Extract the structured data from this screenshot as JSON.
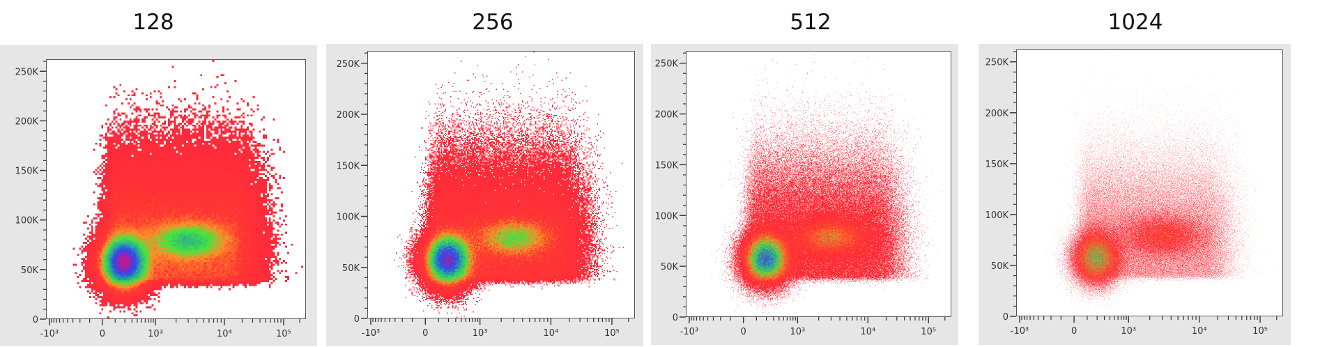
{
  "chart_data": [
    {
      "type": "heatmap",
      "title": "128",
      "bins": 128,
      "x_scale": "biexponential",
      "y_scale": "linear",
      "xlim": [
        -1200,
        262144
      ],
      "ylim": [
        0,
        262144
      ],
      "grid": false,
      "x_ticks": [
        {
          "value": -1000,
          "label": "-10³"
        },
        {
          "value": 0,
          "label": "0"
        },
        {
          "value": 1000,
          "label": "10³"
        },
        {
          "value": 10000,
          "label": "10⁴"
        },
        {
          "value": 100000,
          "label": "10⁵"
        }
      ],
      "y_ticks": [
        {
          "value": 0,
          "label": "0"
        },
        {
          "value": 50000,
          "label": "50K"
        },
        {
          "value": 100000,
          "label": "100K"
        },
        {
          "value": 150000,
          "label": "150K"
        },
        {
          "value": 200000,
          "label": "200K"
        },
        {
          "value": 250000,
          "label": "250K"
        }
      ],
      "populations": [
        {
          "x": 190,
          "y": 57000
        },
        {
          "x": 3000,
          "y": 78000
        }
      ]
    },
    {
      "type": "heatmap",
      "title": "256",
      "bins": 256,
      "x_scale": "biexponential",
      "y_scale": "linear",
      "xlim": [
        -1200,
        262144
      ],
      "ylim": [
        0,
        262144
      ],
      "grid": false,
      "x_ticks": [
        {
          "value": -1000,
          "label": "-10³"
        },
        {
          "value": 0,
          "label": "0"
        },
        {
          "value": 1000,
          "label": "10³"
        },
        {
          "value": 10000,
          "label": "10⁴"
        },
        {
          "value": 100000,
          "label": "10⁵"
        }
      ],
      "y_ticks": [
        {
          "value": 0,
          "label": "0"
        },
        {
          "value": 50000,
          "label": "50K"
        },
        {
          "value": 100000,
          "label": "100K"
        },
        {
          "value": 150000,
          "label": "150K"
        },
        {
          "value": 200000,
          "label": "200K"
        },
        {
          "value": 250000,
          "label": "250K"
        }
      ],
      "populations": [
        {
          "x": 190,
          "y": 57000
        },
        {
          "x": 3000,
          "y": 78000
        }
      ]
    },
    {
      "type": "heatmap",
      "title": "512",
      "bins": 512,
      "x_scale": "biexponential",
      "y_scale": "linear",
      "xlim": [
        -1200,
        262144
      ],
      "ylim": [
        0,
        262144
      ],
      "grid": false,
      "x_ticks": [
        {
          "value": -1000,
          "label": "-10³"
        },
        {
          "value": 0,
          "label": "0"
        },
        {
          "value": 1000,
          "label": "10³"
        },
        {
          "value": 10000,
          "label": "10⁴"
        },
        {
          "value": 100000,
          "label": "10⁵"
        }
      ],
      "y_ticks": [
        {
          "value": 0,
          "label": "0"
        },
        {
          "value": 50000,
          "label": "50K"
        },
        {
          "value": 100000,
          "label": "100K"
        },
        {
          "value": 150000,
          "label": "150K"
        },
        {
          "value": 200000,
          "label": "200K"
        },
        {
          "value": 250000,
          "label": "250K"
        }
      ],
      "populations": [
        {
          "x": 190,
          "y": 57000
        },
        {
          "x": 3000,
          "y": 78000
        }
      ]
    },
    {
      "type": "heatmap",
      "title": "1024",
      "bins": 1024,
      "x_scale": "biexponential",
      "y_scale": "linear",
      "xlim": [
        -1200,
        262144
      ],
      "ylim": [
        0,
        262144
      ],
      "grid": false,
      "x_ticks": [
        {
          "value": -1000,
          "label": "-10³"
        },
        {
          "value": 0,
          "label": "0"
        },
        {
          "value": 1000,
          "label": "10³"
        },
        {
          "value": 10000,
          "label": "10⁴"
        },
        {
          "value": 100000,
          "label": "10⁵"
        }
      ],
      "y_ticks": [
        {
          "value": 0,
          "label": "0"
        },
        {
          "value": 50000,
          "label": "50K"
        },
        {
          "value": 100000,
          "label": "100K"
        },
        {
          "value": 150000,
          "label": "150K"
        },
        {
          "value": 200000,
          "label": "200K"
        },
        {
          "value": 250000,
          "label": "250K"
        }
      ],
      "populations": [
        {
          "x": 190,
          "y": 57000
        },
        {
          "x": 3000,
          "y": 78000
        }
      ]
    }
  ],
  "colors": {
    "panel_background": "#e6e6e6",
    "plot_border": "#5a5450",
    "density_low": "#ff283c",
    "density_mid": "#46e63c",
    "density_high": "#3246f0",
    "density_peak": "#d21482"
  }
}
